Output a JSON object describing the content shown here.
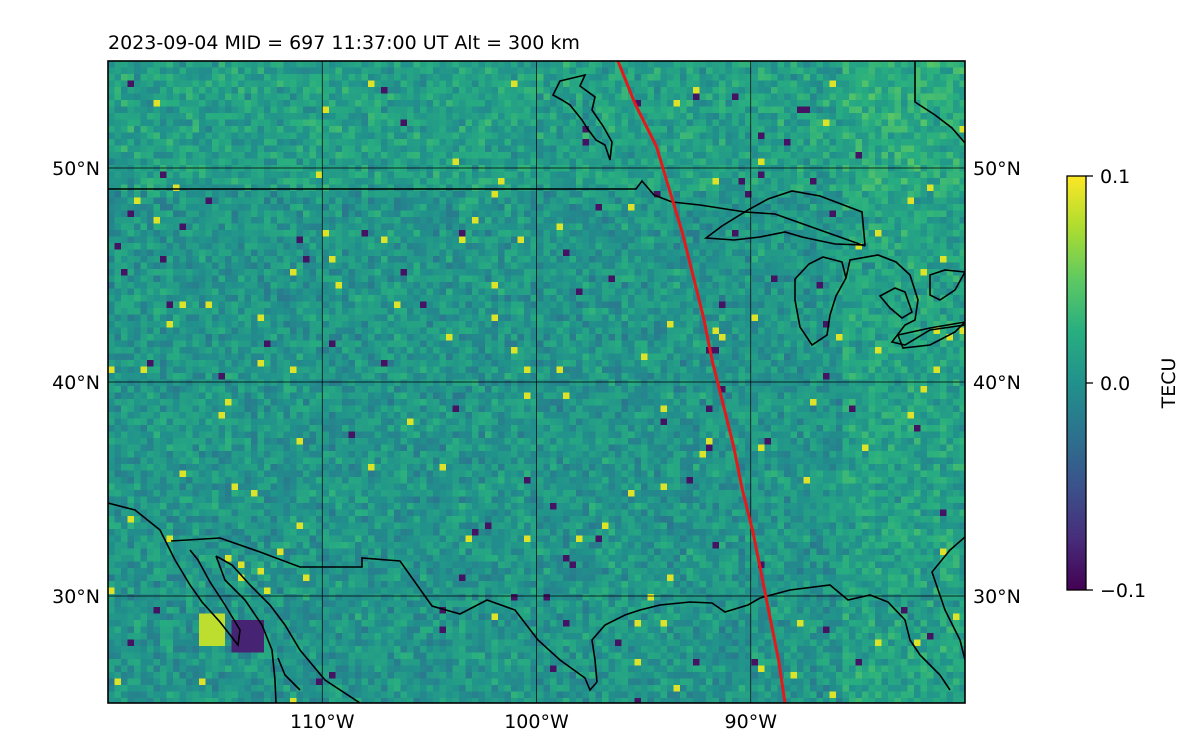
{
  "title": "2023-09-04  MID = 697    11:37:00  UT  Alt = 300 km",
  "map": {
    "lat_ticks": [
      {
        "value": 50,
        "label": "50°N"
      },
      {
        "value": 40,
        "label": "40°N"
      },
      {
        "value": 30,
        "label": "30°N"
      }
    ],
    "lon_ticks": [
      {
        "value": -110,
        "label": "110°W"
      },
      {
        "value": -100,
        "label": "100°W"
      },
      {
        "value": -90,
        "label": "90°W"
      }
    ],
    "extent": {
      "lon": [
        -120,
        -80
      ],
      "lat": [
        25,
        55
      ]
    },
    "grid": true,
    "terminator_color": "#e31a1c",
    "coastline_color": "#000000"
  },
  "colorbar": {
    "label": "TECU",
    "max_label": "0.1",
    "mid_label": "0.0",
    "min_label": "−0.1",
    "colormap": "viridis",
    "range": [
      -0.1,
      0.1
    ]
  },
  "chart_data": {
    "type": "heatmap",
    "title": "2023-09-04  MID = 697    11:37:00  UT  Alt = 300 km",
    "xlabel": "",
    "ylabel": "",
    "x_range": [
      -120,
      -80
    ],
    "y_range": [
      25,
      55
    ],
    "value_range": [
      -0.1,
      0.1
    ],
    "colorbar_label": "TECU",
    "series": [
      {
        "values_lonlat": [
          [
            -96.2,
            55
          ],
          [
            -95.4,
            53
          ],
          [
            -94.4,
            51
          ],
          [
            -93.8,
            49
          ],
          [
            -93.2,
            47
          ],
          [
            -92.7,
            45
          ],
          [
            -92.2,
            43
          ],
          [
            -91.8,
            41
          ],
          [
            -91.3,
            39
          ],
          [
            -90.8,
            37
          ],
          [
            -90.4,
            35
          ],
          [
            -89.9,
            33
          ],
          [
            -89.5,
            31
          ],
          [
            -89.1,
            29
          ],
          [
            -88.7,
            27
          ],
          [
            -88.4,
            25
          ]
        ]
      }
    ]
  }
}
